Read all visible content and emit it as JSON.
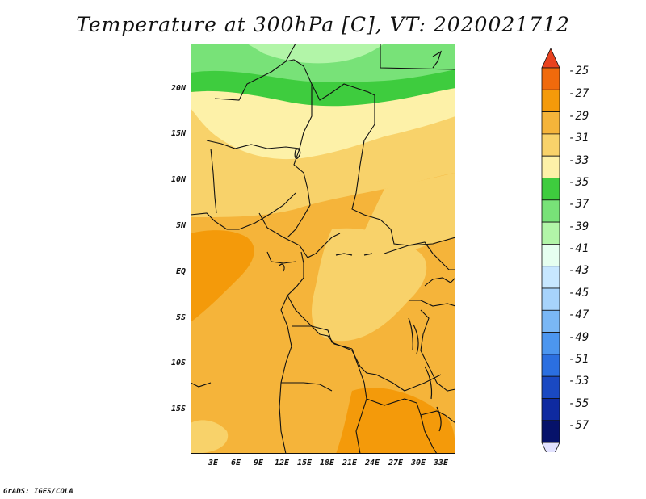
{
  "title": "Temperature at 300hPa [C], VT: 2020021712",
  "credit": "GrADS: IGES/COLA",
  "map": {
    "lat_ticks": [
      "20N",
      "15N",
      "10N",
      "5N",
      "EQ",
      "5S",
      "10S",
      "15S"
    ],
    "lon_ticks": [
      "3E",
      "6E",
      "9E",
      "12E",
      "15E",
      "18E",
      "21E",
      "24E",
      "27E",
      "30E",
      "33E"
    ]
  },
  "colorbar": {
    "labels": [
      "-25",
      "-27",
      "-29",
      "-31",
      "-33",
      "-35",
      "-37",
      "-39",
      "-41",
      "-43",
      "-45",
      "-47",
      "-49",
      "-51",
      "-53",
      "-55",
      "-57"
    ],
    "colors": [
      "#e8421f",
      "#f06a0c",
      "#f49a0a",
      "#f5b43a",
      "#f8d26a",
      "#fdf1a8",
      "#3ecc3e",
      "#78e278",
      "#b2f5a8",
      "#e6fff0",
      "#c7e7ff",
      "#a7d3fb",
      "#7ab7f5",
      "#4c96ef",
      "#2b6fe0",
      "#1a49c2",
      "#0e2aa0",
      "#06126a",
      "#e2e2ff"
    ]
  },
  "fill_colors": {
    "green_dark": "#3ecc3e",
    "green_mid": "#78e278",
    "green_light": "#b2f5a8",
    "yellow_pale": "#fdf1a8",
    "yellow": "#f8d26a",
    "orange_light": "#f5b43a",
    "orange": "#f49a0a"
  }
}
